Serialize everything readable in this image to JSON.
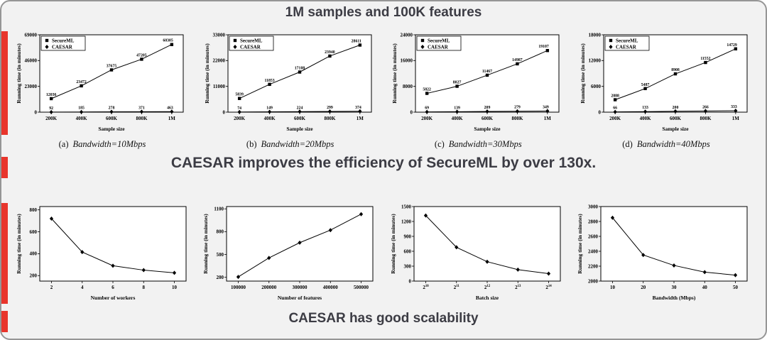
{
  "figure": {
    "title": "1M samples and 100K features",
    "caption_efficiency": "CAESAR improves the efficiency of SecureML by over 130x.",
    "caption_scalability": "CAESAR has good scalability",
    "accent_color": "#e8352c"
  },
  "chart_data": [
    {
      "type": "line",
      "caption_label": "(a)",
      "caption_text": "Bandwidth=10Mbps",
      "xlabel": "Sample size",
      "ylabel": "Running time (in minutes)",
      "categories": [
        "200K",
        "400K",
        "600K",
        "800K",
        "1M"
      ],
      "ylim": [
        0,
        69000
      ],
      "yticks": [
        0,
        23000,
        46000,
        69000
      ],
      "show_values": true,
      "legend_position": "top-left",
      "series": [
        {
          "name": "SecureML",
          "marker": "square",
          "values": [
            12036,
            23472,
            37675,
            47205,
            60305
          ]
        },
        {
          "name": "CAESAR",
          "marker": "diamond",
          "values": [
            92,
            185,
            278,
            371,
            463
          ]
        }
      ]
    },
    {
      "type": "line",
      "caption_label": "(b)",
      "caption_text": "Bandwidth=20Mbps",
      "xlabel": "Sample size",
      "ylabel": "Running time (in minutes)",
      "categories": [
        "200K",
        "400K",
        "600K",
        "800K",
        "1M"
      ],
      "ylim": [
        0,
        33000
      ],
      "yticks": [
        0,
        11000,
        22000,
        33000
      ],
      "show_values": true,
      "legend_position": "top-left",
      "series": [
        {
          "name": "SecureML",
          "marker": "square",
          "values": [
            5839,
            11853,
            17108,
            23940,
            28611
          ]
        },
        {
          "name": "CAESAR",
          "marker": "diamond",
          "values": [
            74,
            149,
            224,
            299,
            374
          ]
        }
      ]
    },
    {
      "type": "line",
      "caption_label": "(c)",
      "caption_text": "Bandwidth=30Mbps",
      "xlabel": "Sample size",
      "ylabel": "Running time (in minutes)",
      "categories": [
        "200K",
        "400K",
        "600K",
        "800K",
        "1M"
      ],
      "ylim": [
        0,
        24000
      ],
      "yticks": [
        0,
        8000,
        16000,
        24000
      ],
      "show_values": true,
      "legend_position": "top-left",
      "series": [
        {
          "name": "SecureML",
          "marker": "square",
          "values": [
            5822,
            8027,
            11467,
            14987,
            19107
          ]
        },
        {
          "name": "CAESAR",
          "marker": "diamond",
          "values": [
            69,
            139,
            209,
            279,
            349
          ]
        }
      ]
    },
    {
      "type": "line",
      "caption_label": "(d)",
      "caption_text": "Bandwidth=40Mbps",
      "xlabel": "Sample size",
      "ylabel": "Running time (in minutes)",
      "categories": [
        "200K",
        "400K",
        "600K",
        "800K",
        "1M"
      ],
      "ylim": [
        0,
        18000
      ],
      "yticks": [
        0,
        6000,
        12000,
        18000
      ],
      "show_values": true,
      "legend_position": "top-left",
      "series": [
        {
          "name": "SecureML",
          "marker": "square",
          "values": [
            2888,
            5487,
            8908,
            11552,
            14729
          ]
        },
        {
          "name": "CAESAR",
          "marker": "diamond",
          "values": [
            66,
            133,
            200,
            266,
            333
          ]
        }
      ]
    },
    {
      "type": "line",
      "xlabel": "Number of workers",
      "ylabel": "Running time (in minutes)",
      "categories": [
        "2",
        "4",
        "6",
        "8",
        "10"
      ],
      "ylim": [
        150,
        830
      ],
      "yticks": [
        200,
        400,
        600,
        800
      ],
      "show_values": false,
      "series": [
        {
          "name": "CAESAR",
          "marker": "diamond",
          "values": [
            720,
            415,
            290,
            250,
            225
          ]
        }
      ]
    },
    {
      "type": "line",
      "xlabel": "Number of features",
      "ylabel": "Running time (in minutes)",
      "categories": [
        "100000",
        "200000",
        "300000",
        "400000",
        "500000"
      ],
      "ylim": [
        150,
        1130
      ],
      "yticks": [
        200,
        500,
        800,
        1100
      ],
      "show_values": false,
      "series": [
        {
          "name": "CAESAR",
          "marker": "diamond",
          "values": [
            205,
            455,
            655,
            820,
            1030
          ]
        }
      ]
    },
    {
      "type": "line",
      "xlabel": "Batch size",
      "ylabel": "Running time (in minutes)",
      "categories": [
        "2^10",
        "2^11",
        "2^12",
        "2^13",
        "2^14"
      ],
      "ylim": [
        0,
        1500
      ],
      "yticks": [
        0,
        300,
        600,
        900,
        1200,
        1500
      ],
      "show_values": false,
      "series": [
        {
          "name": "CAESAR",
          "marker": "diamond",
          "values": [
            1320,
            680,
            390,
            230,
            150
          ]
        }
      ]
    },
    {
      "type": "line",
      "xlabel": "Bandwidth (Mbps)",
      "ylabel": "Running time (in minutes)",
      "categories": [
        "10",
        "20",
        "30",
        "40",
        "50"
      ],
      "ylim": [
        2000,
        3000
      ],
      "yticks": [
        2000,
        2200,
        2400,
        2600,
        2800,
        3000
      ],
      "show_values": false,
      "series": [
        {
          "name": "CAESAR",
          "marker": "diamond",
          "values": [
            2850,
            2350,
            2210,
            2120,
            2080
          ]
        }
      ]
    }
  ]
}
